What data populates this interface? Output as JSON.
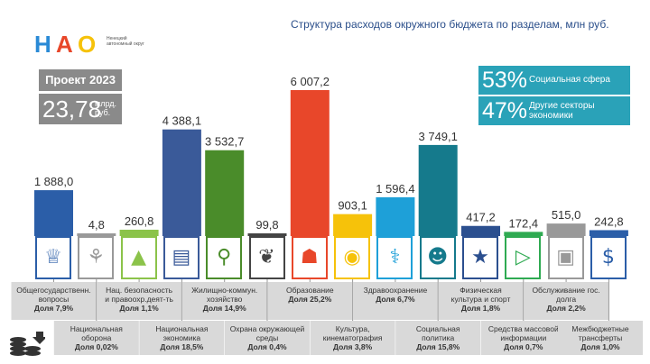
{
  "header": {
    "logo_text": [
      "Н",
      "А",
      "О"
    ],
    "logo_subtitle": "Ненецкий автономный округ",
    "title": "Структура расходов окружного бюджета по разделам, млн руб."
  },
  "project": {
    "label": "Проект 2023",
    "amount": "23,78",
    "unit": "млрд. руб."
  },
  "shares": [
    {
      "pct": "53%",
      "label": "Социальная сфера"
    },
    {
      "pct": "47%",
      "label": "Другие секторы экономики"
    }
  ],
  "colors": {
    "teal": "#2aa2b8",
    "gray_box": "#8a8a8a",
    "icon_border": "#2b5ea8",
    "title": "#2a4e8a"
  },
  "chart_data": {
    "type": "bar",
    "title": "Структура расходов окружного бюджета по разделам, млн руб.",
    "unit": "млн руб.",
    "categories": [
      "Общегосударственн. вопросы",
      "Национальная оборона",
      "Нац. безопасность и правоохр.деят-ть",
      "Национальная экономика",
      "Жилищно-коммун. хозяйство",
      "Охрана окружающей среды",
      "Образование",
      "Культура, кинематография",
      "Здравоохранение",
      "Социальная политика",
      "Физическая культура и спорт",
      "Средства массовой информации",
      "Обслуживание гос. долга",
      "Межбюджетные трансферты"
    ],
    "values": [
      1888.0,
      4.8,
      260.8,
      4388.1,
      3532.7,
      99.8,
      6007.2,
      903.1,
      1596.4,
      3749.1,
      417.2,
      172.4,
      515.0,
      242.8
    ],
    "value_labels": [
      "1 888,0",
      "4,8",
      "260,8",
      "4 388,1",
      "3 532,7",
      "99,8",
      "6 007,2",
      "903,1",
      "1 596,4",
      "3 749,1",
      "417,2",
      "172,4",
      "515,0",
      "242,8"
    ],
    "shares": [
      "Доля 7,9%",
      "Доля 0,02%",
      "Доля 1,1%",
      "Доля 18,5%",
      "Доля 14,9%",
      "Доля 0,4%",
      "Доля 25,2%",
      "Доля 3,8%",
      "Доля 6,7%",
      "Доля 15,8%",
      "Доля 1,8%",
      "Доля 0,7%",
      "Доля 2,2%",
      "Доля 1,0%"
    ],
    "colors": [
      "#2b5ea8",
      "#999999",
      "#8bc34a",
      "#3a5a99",
      "#4a8c2a",
      "#444444",
      "#e8472a",
      "#f6c20a",
      "#1ea0d8",
      "#157a8c",
      "#2b4f8f",
      "#2faa52",
      "#999999",
      "#2b5ea8"
    ],
    "icons": [
      "emblem-icon",
      "shield-icon",
      "police-cap-icon",
      "road-icon",
      "water-tap-icon",
      "leaf-icon",
      "student-desk-icon",
      "film-camera-icon",
      "medical-icon",
      "family-icon",
      "podium-icon",
      "megaphone-icon",
      "briefcase-icon",
      "money-bag-icon"
    ],
    "ylim": [
      0,
      6007.2
    ],
    "grid": false,
    "legend": "none"
  }
}
